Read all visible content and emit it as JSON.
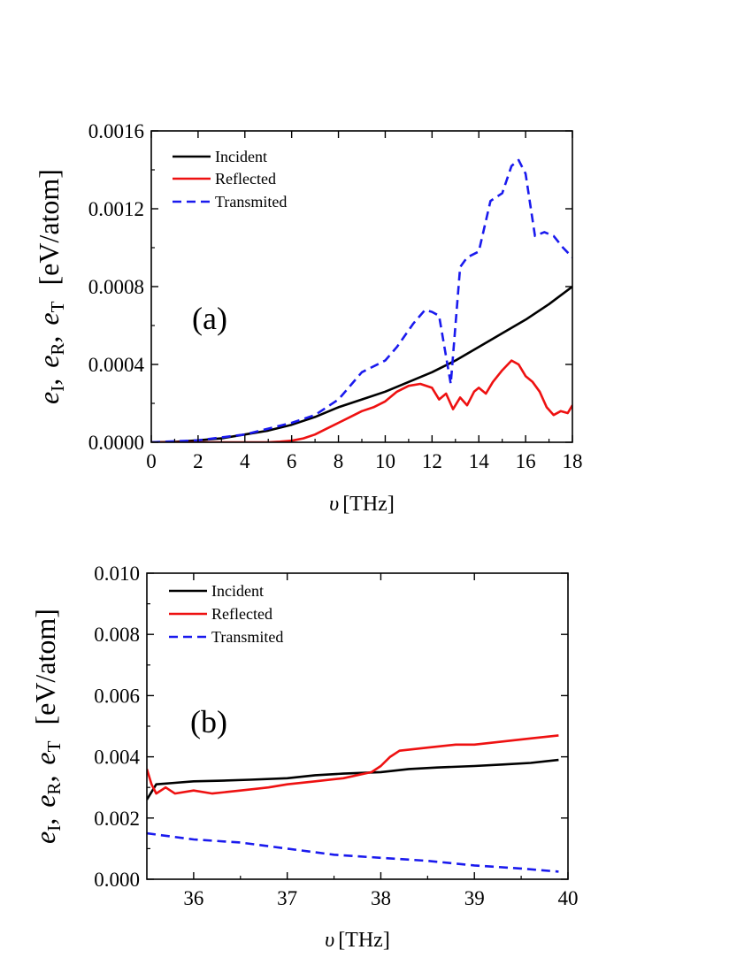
{
  "colors": {
    "incident": "#000000",
    "reflected": "#ee1111",
    "transmitted": "#1a1aee",
    "axis": "#000000"
  },
  "chart_data": [
    {
      "type": "line",
      "panel_label": "(a)",
      "xlabel_symbol": "υ",
      "xlabel_unit": "[THz]",
      "ylabel": {
        "e": "e",
        "sub_I": "I",
        "sub_R": "R",
        "sub_T": "T",
        "sep": ",",
        "unit": "[eV/atom]"
      },
      "xlim": [
        0,
        18
      ],
      "ylim": [
        0,
        0.0016
      ],
      "x_ticks": [
        0,
        2,
        4,
        6,
        8,
        10,
        12,
        14,
        16,
        18
      ],
      "x_tick_labels": [
        "0",
        "2",
        "4",
        "6",
        "8",
        "10",
        "12",
        "14",
        "16",
        "18"
      ],
      "y_ticks": [
        0,
        0.0004,
        0.0008,
        0.0012,
        0.0016
      ],
      "y_tick_labels": [
        "0.0000",
        "0.0004",
        "0.0008",
        "0.0012",
        "0.0016"
      ],
      "legend_position": "top-left",
      "series": [
        {
          "name": "Incident",
          "style": "solid",
          "color": "#000000",
          "x": [
            0,
            1,
            2,
            3,
            4,
            5,
            6,
            7,
            8,
            9,
            10,
            11,
            12,
            13,
            14,
            15,
            16,
            17,
            18
          ],
          "y": [
            0,
            2e-06,
            1e-05,
            2e-05,
            4e-05,
            6e-05,
            9e-05,
            0.00013,
            0.00018,
            0.00022,
            0.00026,
            0.00031,
            0.00036,
            0.00042,
            0.00049,
            0.00056,
            0.00063,
            0.00071,
            0.0008
          ]
        },
        {
          "name": "Reflected",
          "style": "solid",
          "color": "#ee1111",
          "x": [
            0,
            2,
            4,
            5,
            5.5,
            6,
            6.5,
            7,
            7.5,
            8,
            8.5,
            9,
            9.5,
            10,
            10.5,
            11,
            11.5,
            12,
            12.3,
            12.6,
            12.9,
            13.2,
            13.5,
            13.8,
            14,
            14.3,
            14.6,
            15,
            15.4,
            15.7,
            16,
            16.3,
            16.6,
            16.9,
            17.2,
            17.5,
            17.8,
            18
          ],
          "y": [
            0,
            0,
            0,
            0,
            3e-06,
            8e-06,
            2e-05,
            4e-05,
            7e-05,
            0.0001,
            0.00013,
            0.00016,
            0.00018,
            0.00021,
            0.00026,
            0.00029,
            0.0003,
            0.00028,
            0.00022,
            0.00025,
            0.00017,
            0.00023,
            0.00019,
            0.00026,
            0.00028,
            0.00025,
            0.00031,
            0.00037,
            0.00042,
            0.0004,
            0.00034,
            0.00031,
            0.00026,
            0.00018,
            0.00014,
            0.00016,
            0.00015,
            0.00019
          ]
        },
        {
          "name": "Transmited",
          "style": "dashed",
          "color": "#1a1aee",
          "x": [
            0,
            2,
            4,
            6,
            7,
            8,
            9,
            10,
            10.5,
            11.2,
            11.7,
            12,
            12.3,
            12.8,
            13.2,
            13.5,
            14,
            14.5,
            15,
            15.4,
            15.7,
            16,
            16.4,
            16.8,
            17.2,
            17.6,
            18
          ],
          "y": [
            0,
            1e-05,
            4e-05,
            0.0001,
            0.00014,
            0.00022,
            0.00036,
            0.00042,
            0.00049,
            0.00061,
            0.00068,
            0.00067,
            0.00065,
            0.0003,
            0.0009,
            0.00095,
            0.00098,
            0.00124,
            0.00128,
            0.00142,
            0.00145,
            0.00138,
            0.00106,
            0.00108,
            0.00106,
            0.001,
            0.00095
          ]
        }
      ]
    },
    {
      "type": "line",
      "panel_label": "(b)",
      "xlabel_symbol": "υ",
      "xlabel_unit": "[THz]",
      "ylabel": {
        "e": "e",
        "sub_I": "I",
        "sub_R": "R",
        "sub_T": "T",
        "sep": ",",
        "unit": "[eV/atom]"
      },
      "xlim": [
        35.5,
        40
      ],
      "ylim": [
        0,
        0.01
      ],
      "x_ticks": [
        36,
        37,
        38,
        39,
        40
      ],
      "x_tick_labels": [
        "36",
        "37",
        "38",
        "39",
        "40"
      ],
      "y_ticks": [
        0,
        0.002,
        0.004,
        0.006,
        0.008,
        0.01
      ],
      "y_tick_labels": [
        "0.000",
        "0.002",
        "0.004",
        "0.006",
        "0.008",
        "0.010"
      ],
      "legend_position": "top-left",
      "series": [
        {
          "name": "Incident",
          "style": "solid",
          "color": "#000000",
          "x": [
            35.5,
            35.6,
            35.8,
            36,
            36.3,
            36.6,
            37,
            37.3,
            37.6,
            38,
            38.3,
            38.6,
            39,
            39.3,
            39.6,
            39.9
          ],
          "y": [
            0.0026,
            0.0031,
            0.00315,
            0.0032,
            0.00322,
            0.00325,
            0.0033,
            0.0034,
            0.00345,
            0.0035,
            0.0036,
            0.00365,
            0.0037,
            0.00375,
            0.0038,
            0.0039
          ]
        },
        {
          "name": "Reflected",
          "style": "solid",
          "color": "#ee1111",
          "x": [
            35.5,
            35.55,
            35.6,
            35.7,
            35.8,
            36,
            36.2,
            36.5,
            36.8,
            37,
            37.3,
            37.6,
            37.9,
            38,
            38.1,
            38.2,
            38.5,
            38.8,
            39,
            39.3,
            39.6,
            39.9
          ],
          "y": [
            0.0036,
            0.0031,
            0.0028,
            0.003,
            0.0028,
            0.0029,
            0.0028,
            0.0029,
            0.003,
            0.0031,
            0.0032,
            0.0033,
            0.0035,
            0.0037,
            0.004,
            0.0042,
            0.0043,
            0.0044,
            0.0044,
            0.0045,
            0.0046,
            0.0047
          ]
        },
        {
          "name": "Transmited",
          "style": "dashed",
          "color": "#1a1aee",
          "x": [
            35.5,
            36,
            36.5,
            37,
            37.5,
            38,
            38.5,
            39,
            39.5,
            39.9
          ],
          "y": [
            0.0015,
            0.0013,
            0.0012,
            0.001,
            0.0008,
            0.0007,
            0.0006,
            0.00045,
            0.00035,
            0.00025
          ]
        }
      ]
    }
  ]
}
